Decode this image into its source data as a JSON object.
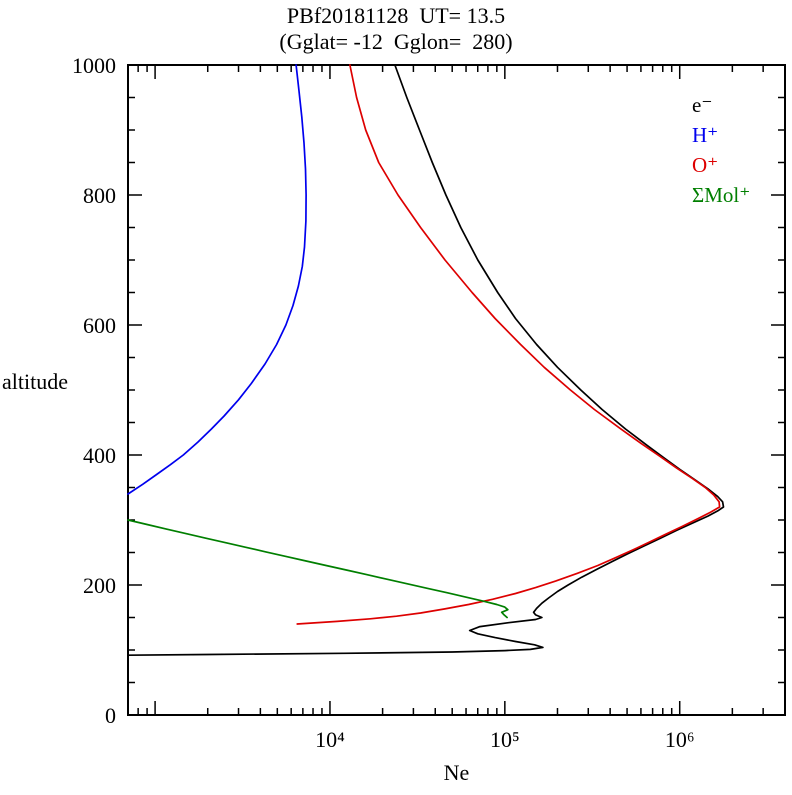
{
  "title": "PBf20181128  UT= 13.5",
  "subtitle": "(Gglat= -12  Gglon=  280)",
  "chart_data": {
    "type": "line",
    "title": "PBf20181128  UT= 13.5",
    "subtitle": "(Gglat= -12  Gglon=  280)",
    "xlabel": "Ne",
    "ylabel": "altitude",
    "x_scale": "log",
    "y_scale": "linear",
    "xlim": [
      700,
      4000000
    ],
    "ylim": [
      0,
      1000
    ],
    "grid": "off",
    "legend_position": "top-right-inside",
    "x_ticks": [
      {
        "value": 10000,
        "label": "10⁴"
      },
      {
        "value": 100000,
        "label": "10⁵"
      },
      {
        "value": 1000000,
        "label": "10⁶"
      }
    ],
    "y_ticks": [
      {
        "value": 0,
        "label": "0"
      },
      {
        "value": 200,
        "label": "200"
      },
      {
        "value": 400,
        "label": "400"
      },
      {
        "value": 600,
        "label": "600"
      },
      {
        "value": 800,
        "label": "800"
      },
      {
        "value": 1000,
        "label": "1000"
      }
    ],
    "series": [
      {
        "name": "e⁻",
        "key": "electron",
        "color": "#000000",
        "points_alt_ne": [
          [
            92,
            700
          ],
          [
            93,
            2000
          ],
          [
            95,
            12000
          ],
          [
            97,
            50000
          ],
          [
            99,
            100000
          ],
          [
            101,
            140000
          ],
          [
            104,
            165000
          ],
          [
            108,
            148000
          ],
          [
            113,
            115000
          ],
          [
            119,
            88000
          ],
          [
            125,
            70000
          ],
          [
            130,
            63000
          ],
          [
            136,
            72000
          ],
          [
            142,
            105000
          ],
          [
            147,
            150000
          ],
          [
            150,
            163000
          ],
          [
            154,
            150000
          ],
          [
            158,
            146000
          ],
          [
            164,
            152000
          ],
          [
            172,
            163000
          ],
          [
            180,
            178000
          ],
          [
            190,
            200000
          ],
          [
            200,
            230000
          ],
          [
            212,
            275000
          ],
          [
            224,
            335000
          ],
          [
            236,
            410000
          ],
          [
            248,
            505000
          ],
          [
            260,
            625000
          ],
          [
            272,
            775000
          ],
          [
            284,
            960000
          ],
          [
            296,
            1200000
          ],
          [
            306,
            1450000
          ],
          [
            314,
            1650000
          ],
          [
            320,
            1780000
          ],
          [
            328,
            1760000
          ],
          [
            336,
            1650000
          ],
          [
            348,
            1450000
          ],
          [
            362,
            1220000
          ],
          [
            378,
            1000000
          ],
          [
            395,
            820000
          ],
          [
            415,
            650000
          ],
          [
            440,
            490000
          ],
          [
            470,
            360000
          ],
          [
            500,
            272000
          ],
          [
            535,
            200000
          ],
          [
            570,
            152000
          ],
          [
            610,
            115000
          ],
          [
            650,
            91000
          ],
          [
            700,
            70000
          ],
          [
            750,
            56000
          ],
          [
            800,
            46000
          ],
          [
            850,
            38500
          ],
          [
            900,
            32500
          ],
          [
            950,
            27500
          ],
          [
            1000,
            23500
          ]
        ]
      },
      {
        "name": "H⁺",
        "key": "h-plus",
        "color": "#0000ee",
        "points_alt_ne": [
          [
            340,
            700
          ],
          [
            355,
            850
          ],
          [
            370,
            1020
          ],
          [
            385,
            1220
          ],
          [
            400,
            1450
          ],
          [
            420,
            1760
          ],
          [
            440,
            2100
          ],
          [
            460,
            2480
          ],
          [
            485,
            3000
          ],
          [
            510,
            3550
          ],
          [
            540,
            4250
          ],
          [
            570,
            4950
          ],
          [
            600,
            5600
          ],
          [
            630,
            6150
          ],
          [
            660,
            6600
          ],
          [
            690,
            6950
          ],
          [
            720,
            7150
          ],
          [
            760,
            7280
          ],
          [
            800,
            7300
          ],
          [
            840,
            7250
          ],
          [
            880,
            7100
          ],
          [
            920,
            6900
          ],
          [
            960,
            6650
          ],
          [
            1000,
            6400
          ]
        ]
      },
      {
        "name": "O⁺",
        "key": "o-plus",
        "color": "#dd0000",
        "points_alt_ne": [
          [
            140,
            6500
          ],
          [
            144,
            11000
          ],
          [
            148,
            17000
          ],
          [
            152,
            24000
          ],
          [
            157,
            33000
          ],
          [
            163,
            45000
          ],
          [
            170,
            62000
          ],
          [
            178,
            85000
          ],
          [
            187,
            115000
          ],
          [
            196,
            150000
          ],
          [
            206,
            195000
          ],
          [
            218,
            260000
          ],
          [
            230,
            340000
          ],
          [
            242,
            430000
          ],
          [
            254,
            540000
          ],
          [
            266,
            670000
          ],
          [
            278,
            830000
          ],
          [
            290,
            1030000
          ],
          [
            302,
            1270000
          ],
          [
            312,
            1500000
          ],
          [
            320,
            1690000
          ],
          [
            328,
            1680000
          ],
          [
            338,
            1570000
          ],
          [
            350,
            1400000
          ],
          [
            364,
            1180000
          ],
          [
            380,
            960000
          ],
          [
            398,
            770000
          ],
          [
            418,
            600000
          ],
          [
            442,
            450000
          ],
          [
            470,
            325000
          ],
          [
            500,
            237000
          ],
          [
            535,
            168000
          ],
          [
            570,
            123000
          ],
          [
            610,
            88000
          ],
          [
            650,
            65000
          ],
          [
            700,
            45500
          ],
          [
            750,
            33000
          ],
          [
            800,
            24500
          ],
          [
            850,
            19000
          ],
          [
            900,
            16000
          ],
          [
            950,
            14200
          ],
          [
            1000,
            13000
          ]
        ]
      },
      {
        "name": "ΣMol⁺",
        "key": "mol-plus",
        "color": "#007f00",
        "points_alt_ne": [
          [
            300,
            700
          ],
          [
            293,
            900
          ],
          [
            286,
            1160
          ],
          [
            279,
            1500
          ],
          [
            272,
            1950
          ],
          [
            265,
            2550
          ],
          [
            258,
            3300
          ],
          [
            251,
            4300
          ],
          [
            244,
            5600
          ],
          [
            237,
            7300
          ],
          [
            230,
            9500
          ],
          [
            223,
            12400
          ],
          [
            216,
            16200
          ],
          [
            209,
            21000
          ],
          [
            202,
            27500
          ],
          [
            195,
            36000
          ],
          [
            188,
            47000
          ],
          [
            181,
            61000
          ],
          [
            175,
            76000
          ],
          [
            170,
            90000
          ],
          [
            166,
            100000
          ],
          [
            162,
            104000
          ],
          [
            158,
            96000
          ],
          [
            154,
            99000
          ],
          [
            150,
            103000
          ]
        ]
      }
    ]
  }
}
